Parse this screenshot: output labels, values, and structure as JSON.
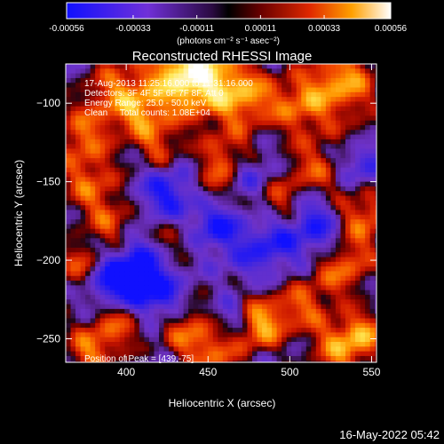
{
  "colorbar": {
    "tick_labels": [
      "-0.00056",
      "-0.00033",
      "-0.00011",
      "0.00011",
      "0.00033",
      "0.00056"
    ],
    "tick_values": [
      -0.00056,
      -0.00033,
      -0.00011,
      0.00011,
      0.00033,
      0.00056
    ],
    "range": [
      -0.00056,
      0.00056
    ],
    "units": "(photons cm⁻² s⁻¹ asec⁻²)"
  },
  "chart_data": {
    "type": "heatmap",
    "title": "Reconstructed RHESSI Image",
    "xlabel": "Heliocentric X (arcsec)",
    "ylabel": "Heliocentric Y (arcsec)",
    "xlim": [
      363,
      553
    ],
    "ylim": [
      -265,
      -75
    ],
    "x_ticks": [
      400,
      450,
      500,
      550
    ],
    "y_ticks": [
      -100,
      -150,
      -200,
      -250
    ],
    "info_lines": [
      "17-Aug-2013 11:25:16.000 to 11:31:16.000",
      "Detectors: 3F 4F 5F 6F 7F 8F, Att 0",
      "Energy Range: 25.0 - 50.0 keV",
      "Clean     Total counts: 1.08E+04"
    ],
    "peak_label": "Position of Peak = [439,-75]",
    "peak": {
      "x": 439,
      "y": -75
    }
  },
  "footer": {
    "timestamp": "16-May-2022 05:42"
  },
  "colors": {
    "background": "#000000",
    "low": "#0000ff",
    "mid_low": "#7a2fd0",
    "zero": "#000000",
    "mid_high": "#d02000",
    "high": "#ffffff"
  }
}
